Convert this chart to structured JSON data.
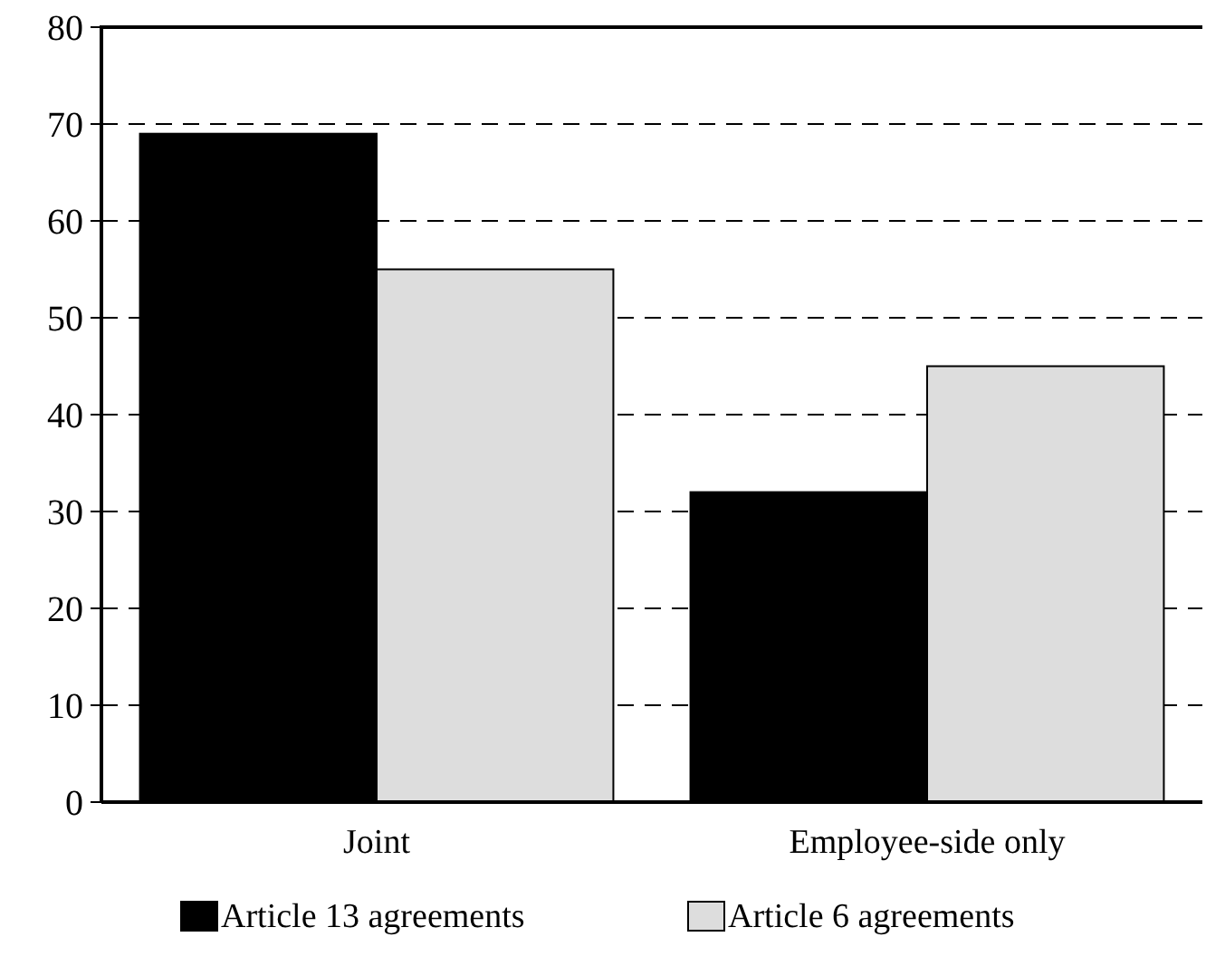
{
  "chart_data": {
    "type": "bar",
    "categories": [
      "Joint",
      "Employee-side only"
    ],
    "series": [
      {
        "name": "Article 13 agreements",
        "color": "#000000",
        "values": [
          69,
          32
        ]
      },
      {
        "name": "Article 6 agreements",
        "color": "#dddddd",
        "values": [
          55,
          45
        ]
      }
    ],
    "ylim": [
      0,
      80
    ],
    "yticks": [
      0,
      10,
      20,
      30,
      40,
      50,
      60,
      70,
      80
    ],
    "grid": "y",
    "legend": "bottom"
  }
}
